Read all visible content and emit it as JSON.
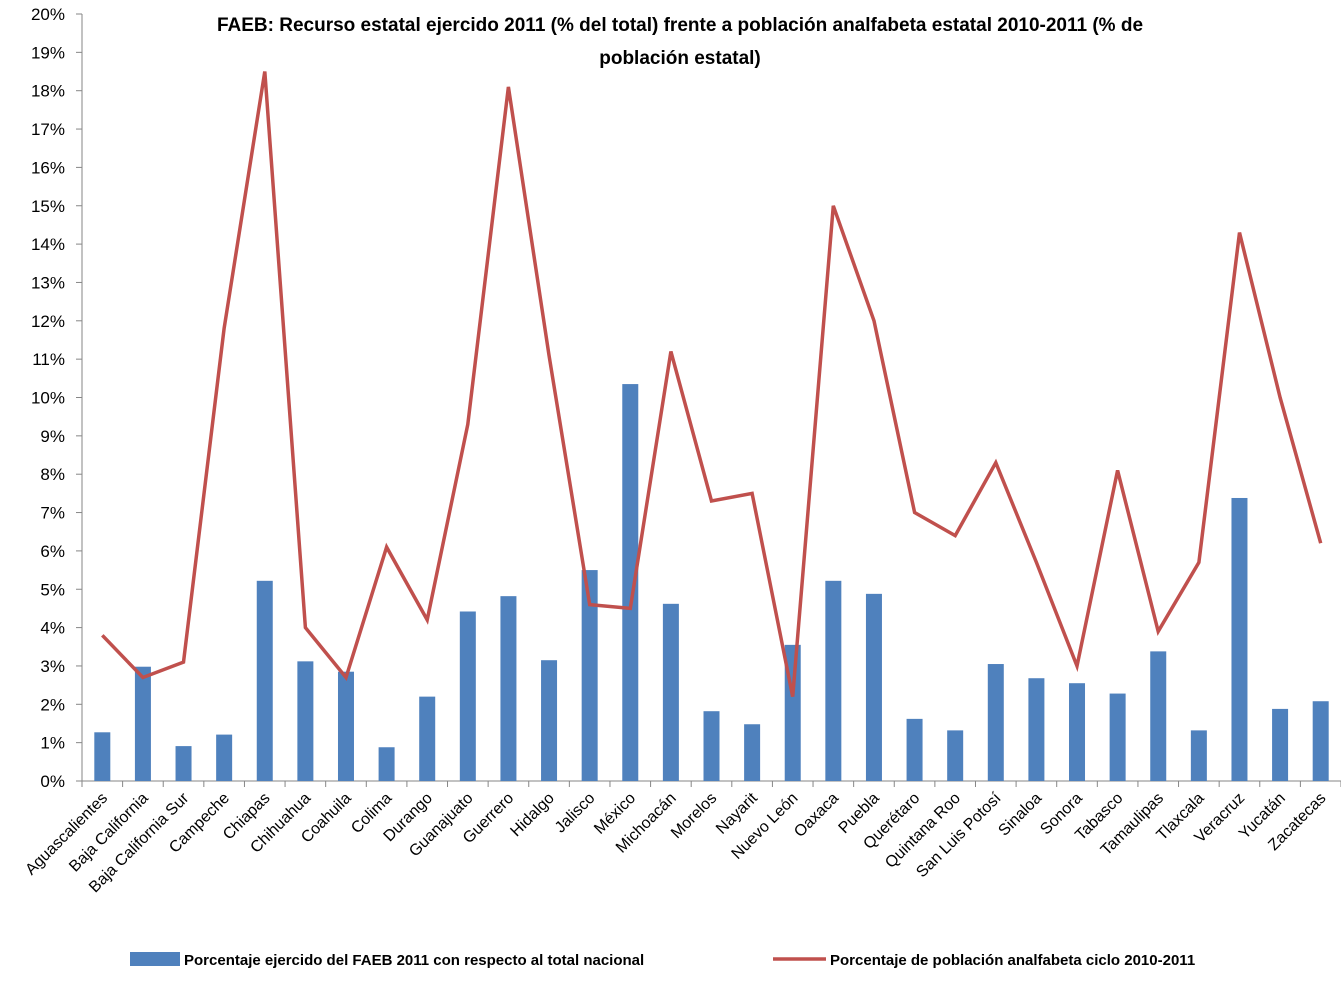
{
  "chart_data": {
    "type": "bar",
    "title_line1": "FAEB: Recurso estatal ejercido 2011 (% del total)  frente a población analfabeta estatal 2010-2011 (% de",
    "title_line2": "población estatal)",
    "xlabel": "",
    "ylabel": "",
    "ylim": [
      0,
      20
    ],
    "y_unit": "%",
    "grid": false,
    "legend_position": "bottom",
    "categories": [
      "Aguascalientes",
      "Baja California",
      "Baja California Sur",
      "Campeche",
      "Chiapas",
      "Chihuahua",
      "Coahuila",
      "Colima",
      "Durango",
      "Guanajuato",
      "Guerrero",
      "Hidalgo",
      "Jalisco",
      "México",
      "Michoacán",
      "Morelos",
      "Nayarit",
      "Nuevo León",
      "Oaxaca",
      "Puebla",
      "Querétaro",
      "Quintana Roo",
      "San Luis Potosí",
      "Sinaloa",
      "Sonora",
      "Tabasco",
      "Tamaulipas",
      "Tlaxcala",
      "Veracruz",
      "Yucatán",
      "Zacatecas"
    ],
    "y_ticks": [
      "0%",
      "1%",
      "2%",
      "3%",
      "4%",
      "5%",
      "6%",
      "7%",
      "8%",
      "9%",
      "10%",
      "11%",
      "12%",
      "13%",
      "14%",
      "15%",
      "16%",
      "17%",
      "18%",
      "19%",
      "20%"
    ],
    "series": [
      {
        "name": "Porcentaje ejercido del FAEB 2011 con respecto al total nacional",
        "type": "bar",
        "color": "#4f81bd",
        "values": [
          1.27,
          2.98,
          0.91,
          1.21,
          5.22,
          3.12,
          2.85,
          0.88,
          2.2,
          4.42,
          4.82,
          3.15,
          5.5,
          10.35,
          4.62,
          1.82,
          1.48,
          3.55,
          5.22,
          4.88,
          1.62,
          1.32,
          3.05,
          2.68,
          2.55,
          2.28,
          3.38,
          1.32,
          7.38,
          1.88,
          2.08
        ]
      },
      {
        "name": "Porcentaje de población analfabeta ciclo 2010-2011",
        "type": "line",
        "color": "#c0504d",
        "values": [
          3.8,
          2.7,
          3.1,
          11.8,
          18.5,
          4.0,
          2.7,
          6.1,
          4.2,
          9.3,
          18.1,
          11.1,
          4.6,
          4.5,
          11.2,
          7.3,
          7.5,
          2.2,
          15.0,
          12.0,
          7.0,
          6.4,
          8.3,
          5.7,
          3.0,
          8.1,
          3.9,
          5.7,
          14.3,
          10.0,
          6.2
        ]
      }
    ]
  }
}
